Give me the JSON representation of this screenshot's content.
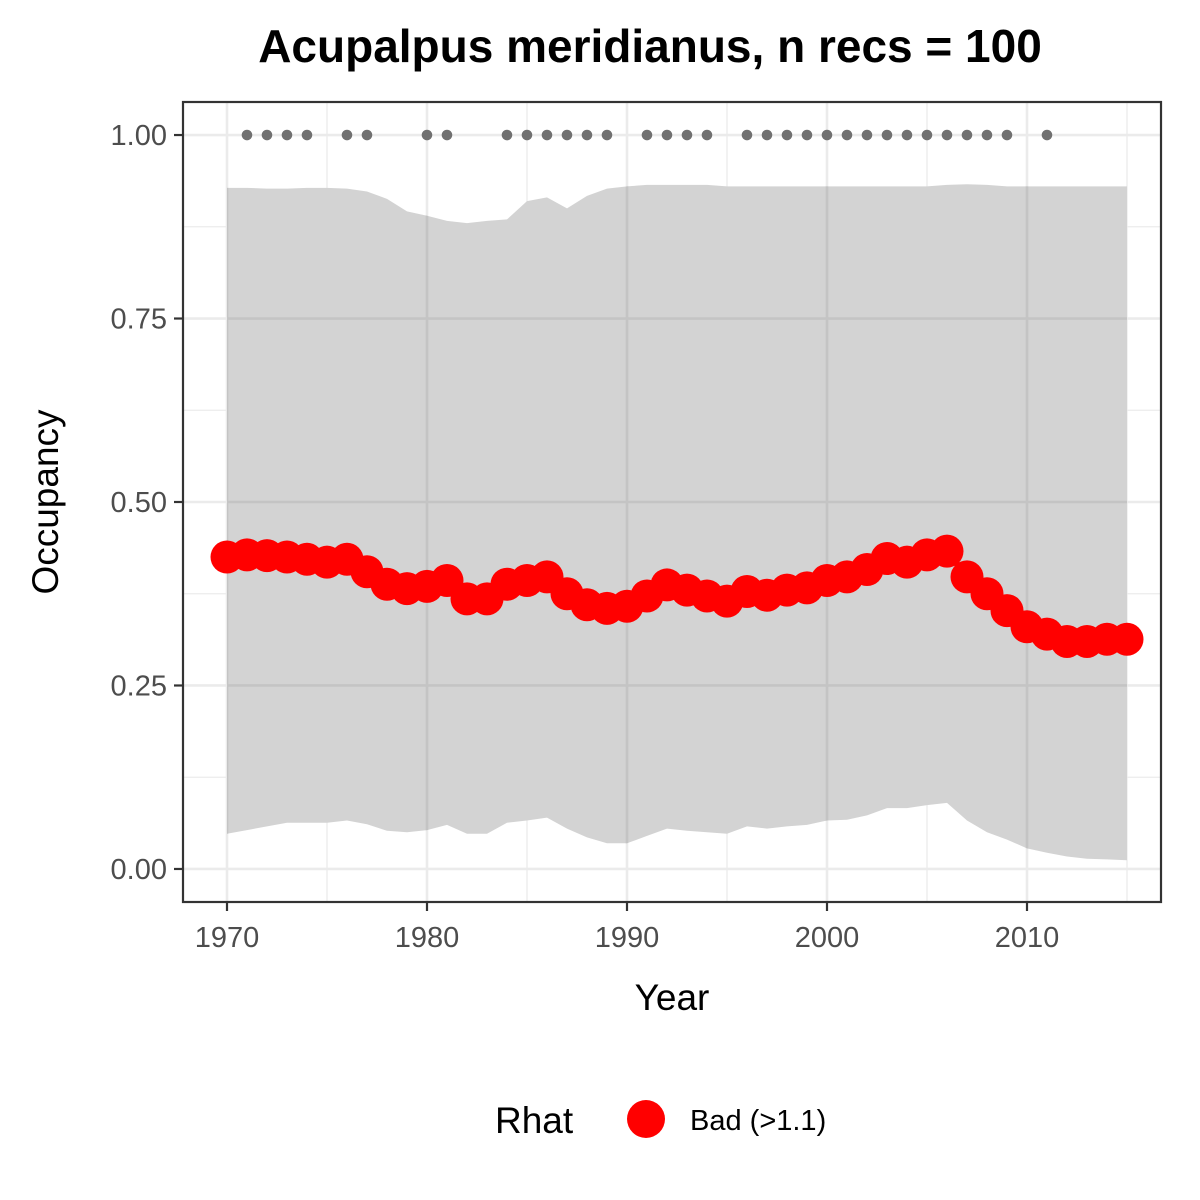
{
  "chart_data": {
    "type": "line",
    "title": "Acupalpus meridianus, n recs = 100",
    "xlabel": "Year",
    "ylabel": "Occupancy",
    "xlim": [
      1967.8,
      2016.7
    ],
    "ylim": [
      -0.045,
      1.045
    ],
    "x_ticks": [
      1970,
      1980,
      1990,
      2000,
      2010
    ],
    "x_tick_labels": [
      "1970",
      "1980",
      "1990",
      "2000",
      "2010"
    ],
    "x_minor_ticks": [
      1975,
      1985,
      1995,
      2005,
      2015
    ],
    "y_ticks": [
      0,
      0.25,
      0.5,
      0.75,
      1
    ],
    "y_tick_labels": [
      "0.00",
      "0.25",
      "0.50",
      "0.75",
      "1.00"
    ],
    "y_minor_ticks": [
      0.125,
      0.375,
      0.625,
      0.875
    ],
    "grid": true,
    "legend": {
      "position": "bottom",
      "title": "Rhat",
      "entries": [
        {
          "label": "Bad (>1.1)",
          "color": "#ff0000"
        }
      ]
    },
    "colors": {
      "series": "#ff0000",
      "ribbon": "#d3d3d3",
      "records": "#707070",
      "grid": "#ebebeb",
      "panel_border": "#333333"
    },
    "x": [
      1970,
      1971,
      1972,
      1973,
      1974,
      1975,
      1976,
      1977,
      1978,
      1979,
      1980,
      1981,
      1982,
      1983,
      1984,
      1985,
      1986,
      1987,
      1988,
      1989,
      1990,
      1991,
      1992,
      1993,
      1994,
      1995,
      1996,
      1997,
      1998,
      1999,
      2000,
      2001,
      2002,
      2003,
      2004,
      2005,
      2006,
      2007,
      2008,
      2009,
      2010,
      2011,
      2012,
      2013,
      2014,
      2015
    ],
    "series": [
      {
        "values": [
          0.425,
          0.428,
          0.427,
          0.425,
          0.422,
          0.418,
          0.422,
          0.405,
          0.388,
          0.382,
          0.385,
          0.393,
          0.368,
          0.368,
          0.388,
          0.393,
          0.398,
          0.375,
          0.36,
          0.355,
          0.358,
          0.372,
          0.387,
          0.38,
          0.372,
          0.365,
          0.378,
          0.373,
          0.38,
          0.383,
          0.393,
          0.398,
          0.408,
          0.423,
          0.418,
          0.428,
          0.433,
          0.398,
          0.375,
          0.352,
          0.33,
          0.32,
          0.31,
          0.31,
          0.313,
          0.313
        ]
      }
    ],
    "ribbon": {
      "upper": [
        0.928,
        0.928,
        0.927,
        0.927,
        0.928,
        0.928,
        0.927,
        0.923,
        0.913,
        0.896,
        0.89,
        0.883,
        0.88,
        0.883,
        0.885,
        0.91,
        0.915,
        0.9,
        0.917,
        0.927,
        0.93,
        0.932,
        0.932,
        0.932,
        0.932,
        0.93,
        0.93,
        0.93,
        0.93,
        0.93,
        0.93,
        0.93,
        0.93,
        0.93,
        0.93,
        0.93,
        0.932,
        0.933,
        0.932,
        0.93,
        0.93,
        0.93,
        0.93,
        0.93,
        0.93,
        0.93
      ],
      "lower": [
        0.048,
        0.053,
        0.058,
        0.063,
        0.063,
        0.063,
        0.066,
        0.061,
        0.052,
        0.05,
        0.053,
        0.06,
        0.048,
        0.048,
        0.063,
        0.066,
        0.07,
        0.055,
        0.043,
        0.035,
        0.035,
        0.045,
        0.055,
        0.052,
        0.05,
        0.048,
        0.058,
        0.055,
        0.058,
        0.06,
        0.066,
        0.067,
        0.073,
        0.083,
        0.083,
        0.087,
        0.09,
        0.066,
        0.05,
        0.04,
        0.028,
        0.022,
        0.017,
        0.014,
        0.013,
        0.012
      ]
    },
    "record_years": [
      1971,
      1972,
      1973,
      1974,
      1976,
      1977,
      1980,
      1981,
      1984,
      1985,
      1986,
      1987,
      1988,
      1989,
      1991,
      1992,
      1993,
      1994,
      1996,
      1997,
      1998,
      1999,
      2000,
      2001,
      2002,
      2003,
      2004,
      2005,
      2006,
      2007,
      2008,
      2009,
      2011
    ],
    "record_y": 1.0
  }
}
